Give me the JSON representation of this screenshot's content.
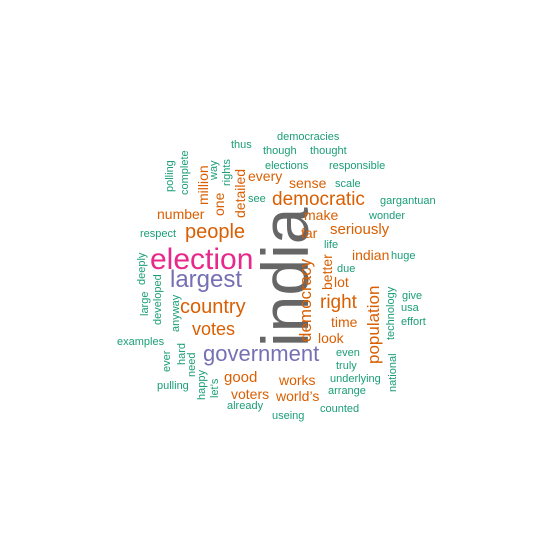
{
  "wordcloud": {
    "colors": {
      "teal": "#1b9e77",
      "orange": "#d95f02",
      "purple": "#7570b3",
      "magenta": "#e7298a",
      "gray": "#666666"
    },
    "words": {
      "india": "india",
      "election": "election",
      "largest": "largest",
      "government": "government",
      "democratic": "democratic",
      "people": "people",
      "country": "country",
      "votes": "votes",
      "right": "right",
      "population": "population",
      "democracy": "democracy",
      "indian": "indian",
      "seriously": "seriously",
      "number": "number",
      "make": "make",
      "sense": "sense",
      "every": "every",
      "million": "million",
      "one": "one",
      "detailed": "detailed",
      "far": "far",
      "lot": "lot",
      "better": "better",
      "time": "time",
      "look": "look",
      "good": "good",
      "works": "works",
      "voters": "voters",
      "worlds": "world’s",
      "democracies": "democracies",
      "thus": "thus",
      "though": "though",
      "thought": "thought",
      "polling": "polling",
      "complete": "complete",
      "way": "way",
      "rights": "rights",
      "elections": "elections",
      "responsible": "responsible",
      "scale": "scale",
      "see": "see",
      "gargantuan": "gargantuan",
      "wonder": "wonder",
      "respect": "respect",
      "life": "life",
      "due": "due",
      "huge": "huge",
      "deeply": "deeply",
      "large": "large",
      "developed": "developed",
      "technology": "technology",
      "give": "give",
      "usa": "usa",
      "effort": "effort",
      "anyway": "anyway",
      "examples": "examples",
      "hard": "hard",
      "ever": "ever",
      "need": "need",
      "even": "even",
      "truly": "truly",
      "national": "national",
      "underlying": "underlying",
      "pulling": "pulling",
      "happy": "happy",
      "lets": "let’s",
      "arrange": "arrange",
      "already": "already",
      "counted": "counted",
      "useing": "useing"
    }
  }
}
